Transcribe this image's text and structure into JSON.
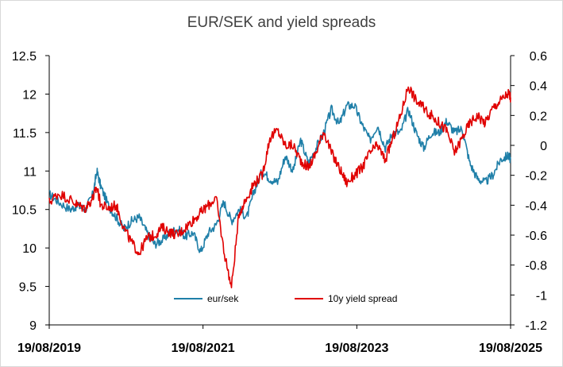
{
  "chart_data": {
    "type": "line",
    "title": "EUR/SEK and yield spreads",
    "xlabel": "",
    "ylabel": "",
    "y_left": {
      "min": 9,
      "max": 12.5,
      "step": 0.5,
      "ticks": [
        "12.5",
        "12",
        "11.5",
        "11",
        "10.5",
        "10",
        "9.5",
        "9"
      ]
    },
    "y_right": {
      "min": -1.2,
      "max": 0.6,
      "step": 0.2,
      "ticks": [
        "0.6",
        "0.4",
        "0.2",
        "0",
        "-0.2",
        "-0.4",
        "-0.6",
        "-0.8",
        "-1",
        "-1.2"
      ]
    },
    "x_ticks": [
      "19/08/2019",
      "19/08/2021",
      "19/08/2023",
      "19/08/2025"
    ],
    "legend": {
      "placement": "bottom-center"
    },
    "grid": false,
    "series": [
      {
        "name": "eur/sek",
        "axis": "left",
        "color": "#1f7fa8",
        "x": [
          2019.63,
          2019.75,
          2019.9,
          2020.0,
          2020.1,
          2020.2,
          2020.25,
          2020.3,
          2020.4,
          2020.5,
          2020.6,
          2020.7,
          2020.8,
          2020.9,
          2021.0,
          2021.1,
          2021.2,
          2021.3,
          2021.4,
          2021.5,
          2021.6,
          2021.7,
          2021.8,
          2021.9,
          2022.0,
          2022.1,
          2022.2,
          2022.3,
          2022.4,
          2022.5,
          2022.6,
          2022.7,
          2022.8,
          2022.9,
          2023.0,
          2023.1,
          2023.2,
          2023.3,
          2023.4,
          2023.5,
          2023.6,
          2023.7,
          2023.8,
          2023.9,
          2024.0,
          2024.1,
          2024.2,
          2024.3,
          2024.4,
          2024.5,
          2024.6,
          2024.7,
          2024.8,
          2024.9,
          2025.0,
          2025.1,
          2025.2,
          2025.3,
          2025.4,
          2025.5,
          2025.6,
          2025.63
        ],
        "values": [
          10.7,
          10.6,
          10.5,
          10.55,
          10.5,
          10.7,
          11.0,
          10.8,
          10.55,
          10.4,
          10.25,
          10.35,
          10.4,
          10.2,
          10.05,
          10.1,
          10.2,
          10.25,
          10.15,
          10.2,
          9.95,
          10.2,
          10.3,
          10.6,
          10.35,
          10.5,
          10.4,
          10.75,
          11.0,
          10.9,
          10.85,
          11.2,
          11.0,
          11.4,
          11.1,
          11.3,
          11.5,
          11.8,
          11.6,
          11.85,
          11.85,
          11.6,
          11.4,
          11.6,
          11.3,
          11.5,
          11.5,
          11.8,
          11.5,
          11.3,
          11.5,
          11.5,
          11.65,
          11.5,
          11.55,
          11.1,
          10.9,
          10.85,
          10.95,
          11.15,
          11.2,
          11.15
        ]
      },
      {
        "name": "10y yield spread",
        "axis": "right",
        "color": "#e00000",
        "x": [
          2019.63,
          2019.75,
          2019.9,
          2020.0,
          2020.1,
          2020.2,
          2020.25,
          2020.3,
          2020.4,
          2020.5,
          2020.6,
          2020.7,
          2020.8,
          2020.9,
          2021.0,
          2021.1,
          2021.2,
          2021.3,
          2021.4,
          2021.5,
          2021.6,
          2021.7,
          2021.8,
          2021.9,
          2022.0,
          2022.1,
          2022.2,
          2022.3,
          2022.4,
          2022.5,
          2022.6,
          2022.7,
          2022.8,
          2022.9,
          2023.0,
          2023.1,
          2023.2,
          2023.3,
          2023.4,
          2023.5,
          2023.6,
          2023.7,
          2023.8,
          2023.9,
          2024.0,
          2024.1,
          2024.2,
          2024.3,
          2024.4,
          2024.5,
          2024.6,
          2024.7,
          2024.8,
          2024.9,
          2025.0,
          2025.1,
          2025.2,
          2025.3,
          2025.4,
          2025.5,
          2025.6,
          2025.63
        ],
        "values": [
          -0.38,
          -0.32,
          -0.36,
          -0.4,
          -0.42,
          -0.35,
          -0.28,
          -0.4,
          -0.42,
          -0.4,
          -0.55,
          -0.65,
          -0.72,
          -0.62,
          -0.6,
          -0.55,
          -0.58,
          -0.6,
          -0.55,
          -0.5,
          -0.45,
          -0.4,
          -0.35,
          -0.7,
          -0.95,
          -0.45,
          -0.35,
          -0.25,
          -0.2,
          0.05,
          0.1,
          0.0,
          0.0,
          -0.1,
          -0.15,
          -0.05,
          0.1,
          -0.05,
          -0.15,
          -0.25,
          -0.2,
          -0.15,
          -0.05,
          0.0,
          -0.1,
          0.05,
          0.2,
          0.4,
          0.3,
          0.25,
          0.2,
          0.15,
          0.1,
          -0.05,
          0.05,
          0.15,
          0.2,
          0.15,
          0.25,
          0.3,
          0.35,
          0.32
        ]
      }
    ]
  }
}
